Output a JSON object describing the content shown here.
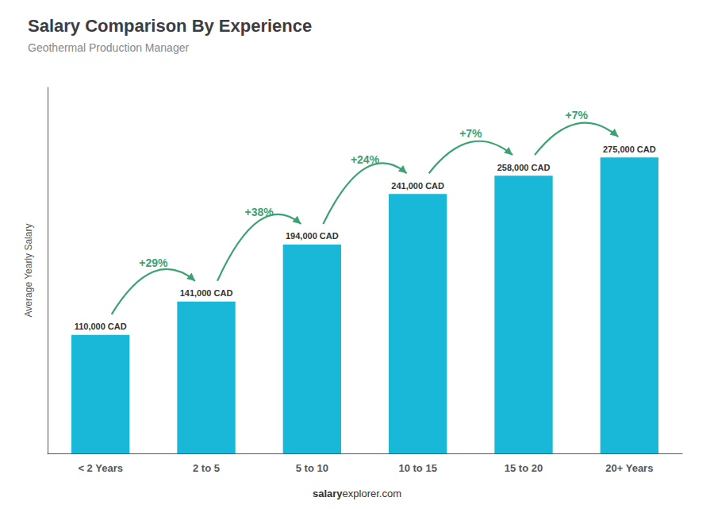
{
  "chart_data": {
    "type": "bar",
    "title": "Salary Comparison By Experience",
    "subtitle": "Geothermal Production Manager",
    "categories": [
      "< 2 Years",
      "2 to 5",
      "5 to 10",
      "10 to 15",
      "15 to 20",
      "20+ Years"
    ],
    "values": [
      110000,
      141000,
      194000,
      241000,
      258000,
      275000
    ],
    "value_labels": [
      "110,000 CAD",
      "141,000 CAD",
      "194,000 CAD",
      "241,000 CAD",
      "258,000 CAD",
      "275,000 CAD"
    ],
    "data_labels": true,
    "color": "#1ab8d8",
    "ylabel": "Average Yearly Salary",
    "ylim": [
      0,
      340000
    ],
    "grid": false,
    "tick_labels": "x",
    "annotations": [
      "+29%",
      "+38%",
      "+24%",
      "+7%",
      "+7%"
    ],
    "footer": [
      "salary",
      "explorer.com"
    ]
  }
}
